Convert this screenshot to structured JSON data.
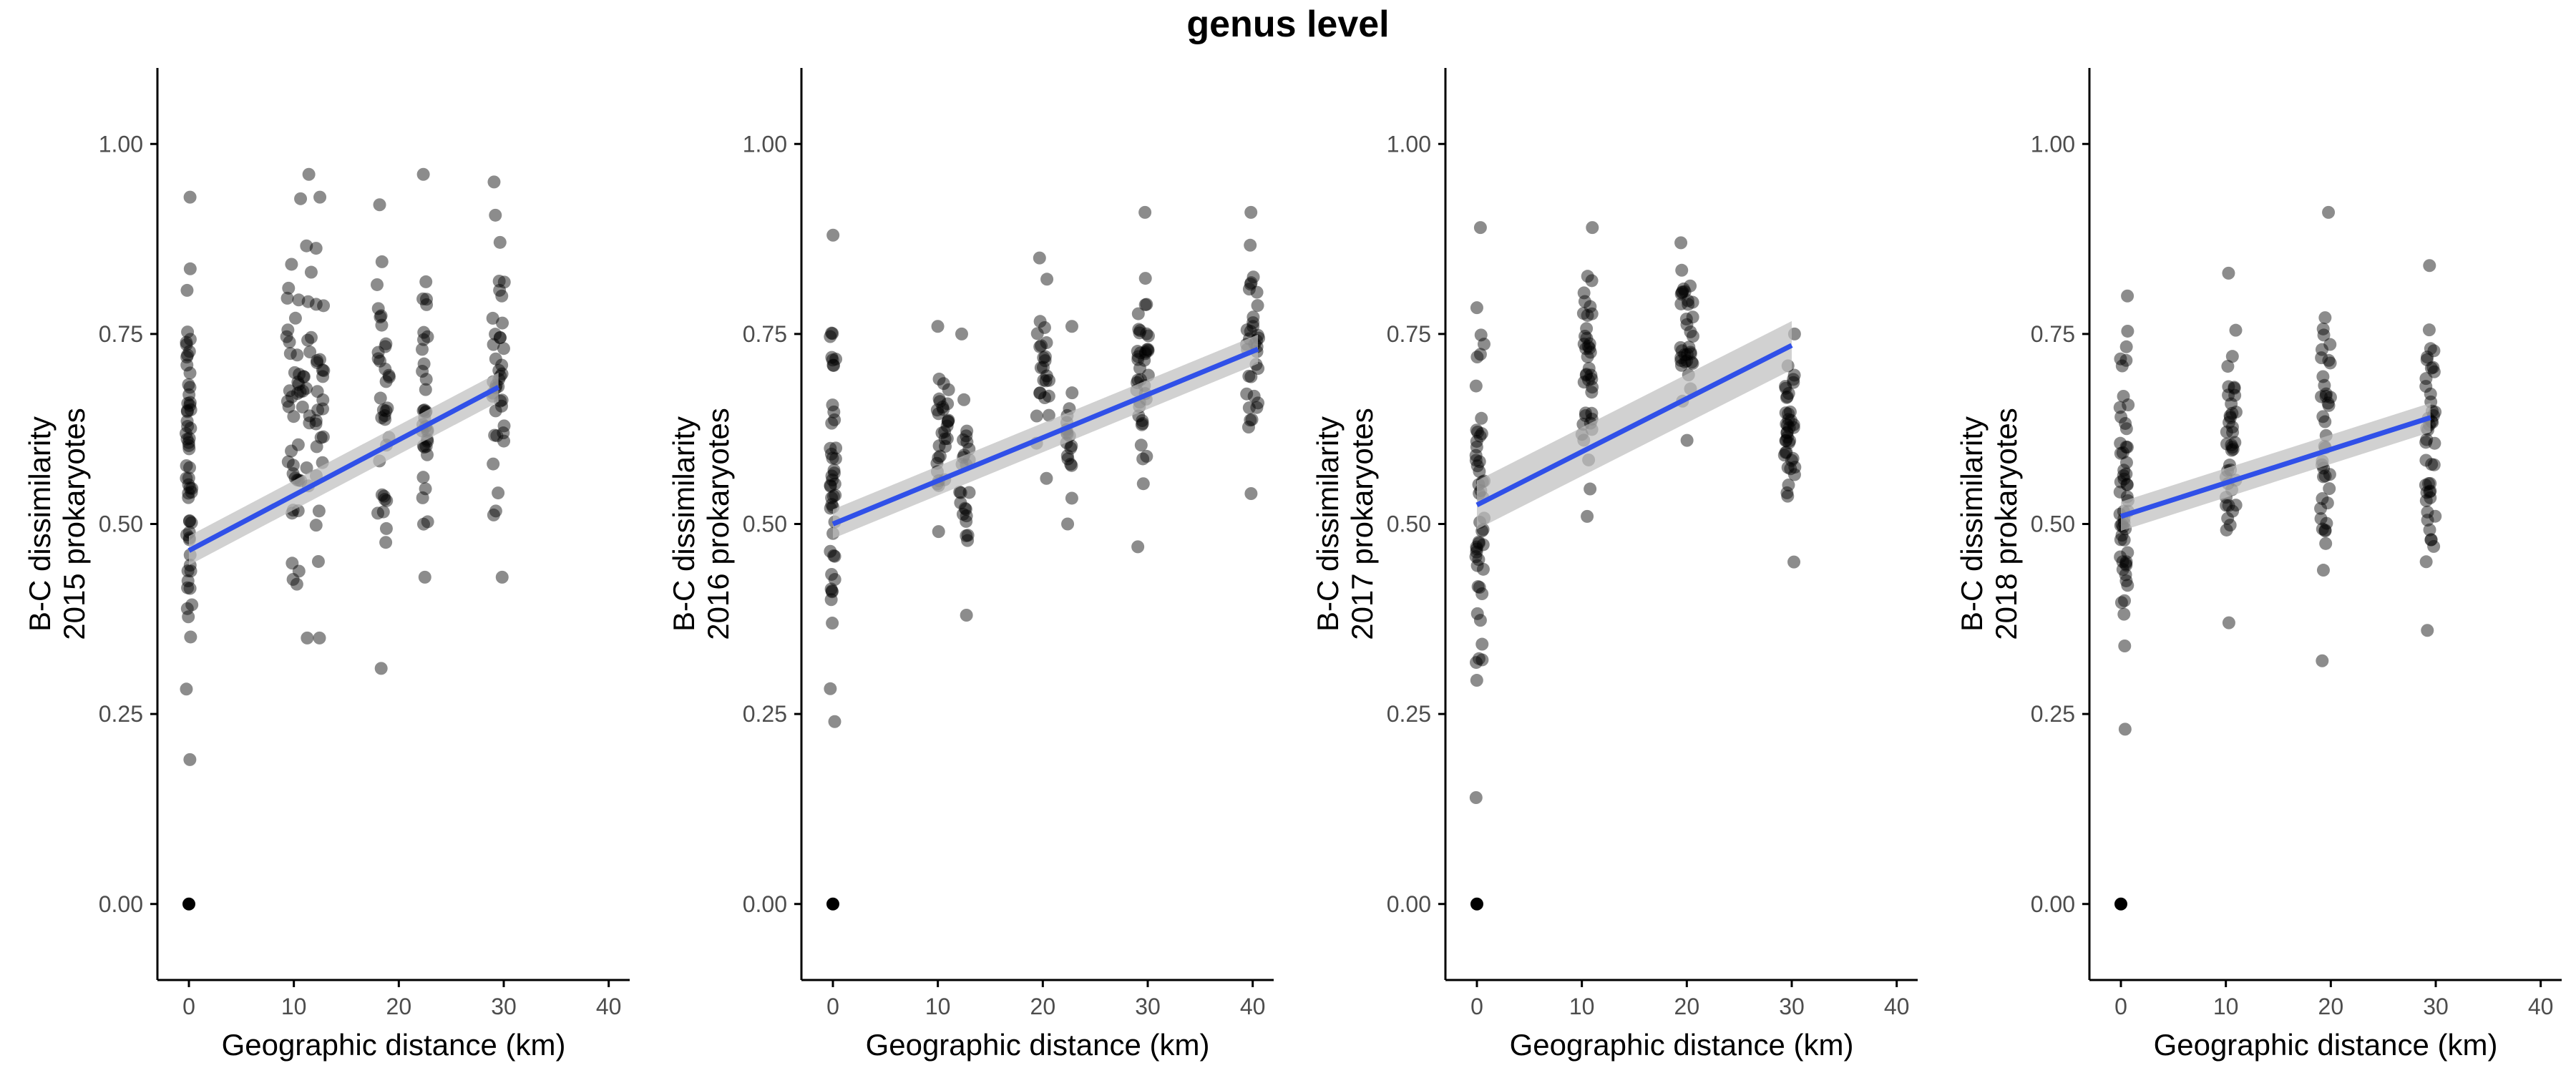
{
  "title": "genus level",
  "colors": {
    "point": "#000000",
    "fit_line": "#3050e8",
    "ci_band": "#bdbdbd",
    "axis": "#000000",
    "tick_label": "#4d4d4d"
  },
  "chart_data": [
    {
      "type": "scatter",
      "xlabel": "Geographic distance (km)",
      "ylabel": [
        "B-C dissimilarity",
        "2015 prokaryotes"
      ],
      "xlim": [
        -3,
        42
      ],
      "ylim": [
        -0.1,
        1.1
      ],
      "xticks": [
        0,
        10,
        20,
        30,
        40
      ],
      "yticks": [
        0.0,
        0.25,
        0.5,
        0.75,
        1.0
      ],
      "ytick_labels": [
        "0.00",
        "0.25",
        "0.50",
        "0.75",
        "1.00"
      ],
      "grid": false,
      "fit": {
        "x": [
          0,
          29.5
        ],
        "y": [
          0.465,
          0.68
        ],
        "ci_halfwidth": 0.012
      },
      "clusters": [
        {
          "x": 0,
          "spread": 0.3,
          "ymin": 0.19,
          "ymax": 0.93,
          "count": 60
        },
        {
          "x": 0,
          "spread": 0,
          "ymin": 0.0,
          "ymax": 0.0,
          "count": 1
        },
        {
          "x": 10.5,
          "spread": 1.2,
          "ymin": 0.35,
          "ymax": 0.96,
          "count": 55
        },
        {
          "x": 12.5,
          "spread": 0.4,
          "ymin": 0.35,
          "ymax": 0.93,
          "count": 25
        },
        {
          "x": 18.5,
          "spread": 0.6,
          "ymin": 0.31,
          "ymax": 0.92,
          "count": 35
        },
        {
          "x": 22.5,
          "spread": 0.3,
          "ymin": 0.43,
          "ymax": 0.96,
          "count": 35
        },
        {
          "x": 29.5,
          "spread": 0.6,
          "ymin": 0.43,
          "ymax": 0.95,
          "count": 40
        }
      ]
    },
    {
      "type": "scatter",
      "xlabel": "Geographic distance (km)",
      "ylabel": [
        "B-C dissimilarity",
        "2016 prokaryotes"
      ],
      "xlim": [
        -3,
        42
      ],
      "ylim": [
        -0.1,
        1.1
      ],
      "xticks": [
        0,
        10,
        20,
        30,
        40
      ],
      "yticks": [
        0.0,
        0.25,
        0.5,
        0.75,
        1.0
      ],
      "ytick_labels": [
        "0.00",
        "0.25",
        "0.50",
        "0.75",
        "1.00"
      ],
      "grid": false,
      "fit": {
        "x": [
          0,
          40.5
        ],
        "y": [
          0.5,
          0.73
        ],
        "ci_halfwidth": 0.012
      },
      "clusters": [
        {
          "x": 0,
          "spread": 0.3,
          "ymin": 0.24,
          "ymax": 0.88,
          "count": 45
        },
        {
          "x": 0,
          "spread": 0,
          "ymin": 0.0,
          "ymax": 0.0,
          "count": 1
        },
        {
          "x": 10.5,
          "spread": 0.6,
          "ymin": 0.49,
          "ymax": 0.76,
          "count": 30
        },
        {
          "x": 12.5,
          "spread": 0.5,
          "ymin": 0.38,
          "ymax": 0.75,
          "count": 25
        },
        {
          "x": 20.0,
          "spread": 0.6,
          "ymin": 0.56,
          "ymax": 0.85,
          "count": 25
        },
        {
          "x": 22.5,
          "spread": 0.3,
          "ymin": 0.5,
          "ymax": 0.76,
          "count": 18
        },
        {
          "x": 29.5,
          "spread": 0.6,
          "ymin": 0.47,
          "ymax": 0.91,
          "count": 40
        },
        {
          "x": 40.0,
          "spread": 0.6,
          "ymin": 0.54,
          "ymax": 0.91,
          "count": 35
        }
      ]
    },
    {
      "type": "scatter",
      "xlabel": "Geographic distance (km)",
      "ylabel": [
        "B-C dissimilarity",
        "2017 prokaryotes"
      ],
      "xlim": [
        -3,
        42
      ],
      "ylim": [
        -0.1,
        1.1
      ],
      "xticks": [
        0,
        10,
        20,
        30,
        40
      ],
      "yticks": [
        0.0,
        0.25,
        0.5,
        0.75,
        1.0
      ],
      "ytick_labels": [
        "0.00",
        "0.25",
        "0.50",
        "0.75",
        "1.00"
      ],
      "grid": false,
      "fit": {
        "x": [
          0,
          30
        ],
        "y": [
          0.525,
          0.735
        ],
        "ci_halfwidth": 0.02
      },
      "clusters": [
        {
          "x": 0.3,
          "spread": 0.4,
          "ymin": 0.14,
          "ymax": 0.89,
          "count": 50
        },
        {
          "x": 0,
          "spread": 0,
          "ymin": 0.0,
          "ymax": 0.0,
          "count": 1
        },
        {
          "x": 10.5,
          "spread": 0.5,
          "ymin": 0.51,
          "ymax": 0.89,
          "count": 40
        },
        {
          "x": 20.0,
          "spread": 0.6,
          "ymin": 0.61,
          "ymax": 0.87,
          "count": 35
        },
        {
          "x": 29.8,
          "spread": 0.5,
          "ymin": 0.45,
          "ymax": 0.75,
          "count": 40
        }
      ]
    },
    {
      "type": "scatter",
      "xlabel": "Geographic distance (km)",
      "ylabel": [
        "B-C dissimilarity",
        "2018 prokaryotes"
      ],
      "xlim": [
        -3,
        42
      ],
      "ylim": [
        -0.1,
        1.1
      ],
      "xticks": [
        0,
        10,
        20,
        30,
        40
      ],
      "yticks": [
        0.0,
        0.25,
        0.5,
        0.75,
        1.0
      ],
      "ytick_labels": [
        "0.00",
        "0.25",
        "0.50",
        "0.75",
        "1.00"
      ],
      "grid": false,
      "fit": {
        "x": [
          0,
          29.5
        ],
        "y": [
          0.51,
          0.64
        ],
        "ci_halfwidth": 0.012
      },
      "clusters": [
        {
          "x": 0.3,
          "spread": 0.4,
          "ymin": 0.23,
          "ymax": 0.8,
          "count": 55
        },
        {
          "x": 0,
          "spread": 0,
          "ymin": 0.0,
          "ymax": 0.0,
          "count": 1
        },
        {
          "x": 10.5,
          "spread": 0.5,
          "ymin": 0.37,
          "ymax": 0.83,
          "count": 40
        },
        {
          "x": 19.5,
          "spread": 0.5,
          "ymin": 0.32,
          "ymax": 0.91,
          "count": 40
        },
        {
          "x": 29.5,
          "spread": 0.5,
          "ymin": 0.36,
          "ymax": 0.84,
          "count": 45
        }
      ]
    }
  ]
}
